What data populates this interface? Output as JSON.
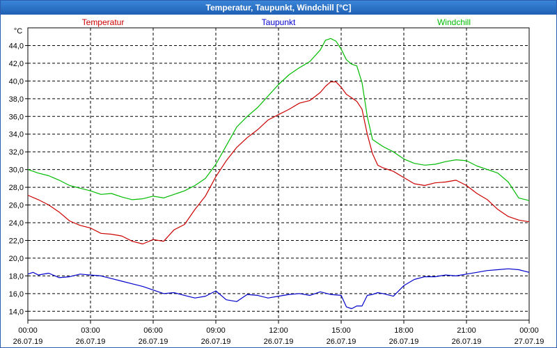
{
  "window": {
    "title": "Temperatur, Taupunkt, Windchill [°C]"
  },
  "chart_data": {
    "type": "line",
    "title": "Temperatur, Taupunkt, Windchill [°C]",
    "ylabel": "°C",
    "ylim": [
      13.0,
      46.0
    ],
    "yticks": [
      "14,0",
      "16,0",
      "18,0",
      "20,0",
      "22,0",
      "24,0",
      "26,0",
      "28,0",
      "30,0",
      "32,0",
      "34,0",
      "36,0",
      "38,0",
      "40,0",
      "42,0",
      "44,0"
    ],
    "ytick_values": [
      14,
      16,
      18,
      20,
      22,
      24,
      26,
      28,
      30,
      32,
      34,
      36,
      38,
      40,
      42,
      44
    ],
    "xlim": [
      0,
      24
    ],
    "x_tick_hours": [
      0,
      3,
      6,
      9,
      12,
      15,
      18,
      21,
      24
    ],
    "x_tick_times": [
      "00:00",
      "03:00",
      "06:00",
      "09:00",
      "12:00",
      "15:00",
      "18:00",
      "21:00",
      "00:00"
    ],
    "x_tick_dates": [
      "26.07.19",
      "26.07.19",
      "26.07.19",
      "26.07.19",
      "26.07.19",
      "26.07.19",
      "26.07.19",
      "26.07.19",
      "27.07.19"
    ],
    "grid": true,
    "series": [
      {
        "name": "Temperatur",
        "color": "#cc0000",
        "x": [
          0,
          0.5,
          1,
          1.5,
          2,
          2.5,
          3,
          3.5,
          4,
          4.5,
          5,
          5.5,
          6,
          6.5,
          7,
          7.5,
          8,
          8.5,
          9,
          9.5,
          10,
          10.5,
          11,
          11.5,
          12,
          12.5,
          13,
          13.5,
          14,
          14.25,
          14.5,
          14.75,
          15,
          15.25,
          15.5,
          15.75,
          16,
          16.25,
          16.5,
          16.75,
          17,
          17.5,
          18,
          18.5,
          19,
          19.5,
          20,
          20.5,
          21,
          21.5,
          22,
          22.5,
          23,
          23.5,
          24
        ],
        "values": [
          27.1,
          26.6,
          26.0,
          25.2,
          24.2,
          23.7,
          23.4,
          22.8,
          22.7,
          22.5,
          21.9,
          21.6,
          22.1,
          21.9,
          23.2,
          23.8,
          25.5,
          27.0,
          29.2,
          31.0,
          32.5,
          33.6,
          34.5,
          35.6,
          36.2,
          36.8,
          37.5,
          37.8,
          38.7,
          39.4,
          39.9,
          39.9,
          39.3,
          38.5,
          38.1,
          37.7,
          36.8,
          34.0,
          31.8,
          30.5,
          30.2,
          29.8,
          29.1,
          28.4,
          28.2,
          28.5,
          28.6,
          28.8,
          28.2,
          27.3,
          26.6,
          25.5,
          24.7,
          24.3,
          24.1
        ]
      },
      {
        "name": "Taupunkt",
        "color": "#0000cc",
        "x": [
          0,
          0.25,
          0.5,
          1,
          1.5,
          2,
          2.5,
          3,
          3.5,
          4,
          4.5,
          5,
          5.5,
          6,
          6.5,
          7,
          7.5,
          8,
          8.5,
          9,
          9.5,
          10,
          10.5,
          11,
          11.5,
          12,
          12.5,
          13,
          13.5,
          14,
          14.5,
          15,
          15.25,
          15.5,
          15.75,
          16,
          16.25,
          16.5,
          16.75,
          17,
          17.5,
          18,
          18.5,
          19,
          19.5,
          20,
          20.5,
          21,
          21.5,
          22,
          22.5,
          23,
          23.5,
          24
        ],
        "values": [
          18.2,
          18.4,
          18.1,
          18.3,
          17.8,
          17.9,
          18.2,
          18.1,
          18.0,
          17.7,
          17.4,
          17.1,
          16.8,
          16.4,
          16.0,
          16.1,
          15.8,
          15.5,
          15.7,
          16.3,
          15.3,
          15.1,
          15.9,
          15.8,
          15.5,
          15.7,
          15.9,
          16.0,
          15.8,
          16.2,
          15.9,
          15.8,
          14.5,
          14.3,
          14.6,
          14.6,
          15.8,
          15.9,
          16.1,
          16.0,
          15.7,
          16.9,
          17.6,
          17.9,
          17.9,
          18.1,
          18.0,
          18.2,
          18.4,
          18.6,
          18.7,
          18.8,
          18.7,
          18.4
        ]
      },
      {
        "name": "Windchill",
        "color": "#00bb00",
        "x": [
          0,
          0.5,
          1,
          1.5,
          2,
          2.5,
          3,
          3.5,
          4,
          4.5,
          5,
          5.5,
          6,
          6.5,
          7,
          7.5,
          8,
          8.5,
          9,
          9.5,
          10,
          10.5,
          11,
          11.5,
          12,
          12.5,
          13,
          13.5,
          14,
          14.25,
          14.5,
          14.75,
          15,
          15.25,
          15.5,
          15.75,
          16,
          16.25,
          16.5,
          16.75,
          17,
          17.5,
          18,
          18.5,
          19,
          19.5,
          20,
          20.5,
          21,
          21.5,
          22,
          22.5,
          23,
          23.5,
          24
        ],
        "values": [
          30.0,
          29.6,
          29.3,
          28.8,
          28.2,
          27.9,
          27.6,
          27.2,
          27.3,
          26.9,
          26.6,
          26.7,
          27.0,
          26.8,
          27.2,
          27.6,
          28.2,
          29.0,
          30.6,
          32.7,
          34.8,
          36.0,
          37.0,
          38.3,
          39.6,
          40.7,
          41.5,
          42.2,
          43.5,
          44.6,
          44.8,
          44.5,
          43.6,
          42.4,
          41.9,
          41.7,
          39.8,
          36.0,
          33.4,
          33.0,
          32.6,
          32.0,
          31.2,
          30.7,
          30.5,
          30.6,
          30.9,
          31.1,
          31.0,
          30.4,
          30.0,
          29.6,
          28.6,
          26.8,
          26.5
        ]
      }
    ]
  }
}
